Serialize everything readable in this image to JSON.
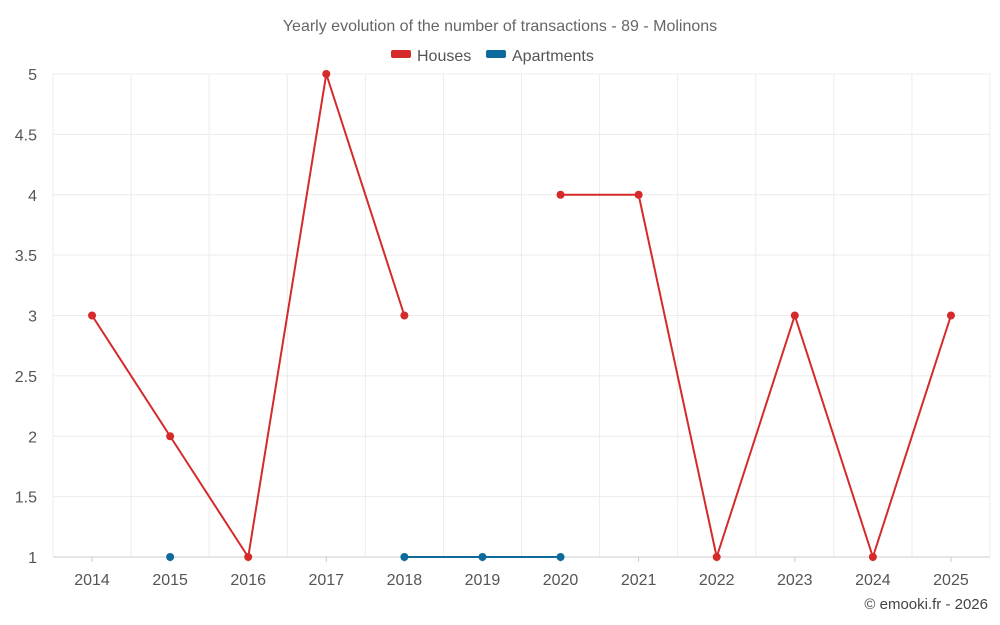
{
  "chart_data": {
    "type": "line",
    "title": "Yearly evolution of the number of transactions - 89 - Molinons",
    "categories": [
      "2014",
      "2015",
      "2016",
      "2017",
      "2018",
      "2019",
      "2020",
      "2021",
      "2022",
      "2023",
      "2024",
      "2025"
    ],
    "y_ticks": [
      "1",
      "1.5",
      "2",
      "2.5",
      "3",
      "3.5",
      "4",
      "4.5",
      "5"
    ],
    "ylim": [
      1,
      5
    ],
    "grid": true,
    "legend_position": "top-center",
    "series": [
      {
        "name": "Houses",
        "color": "#d42a2a",
        "values": [
          3,
          2,
          1,
          5,
          3,
          null,
          4,
          4,
          1,
          3,
          1,
          3
        ]
      },
      {
        "name": "Apartments",
        "color": "#0e6a9c",
        "values": [
          null,
          1,
          null,
          null,
          1,
          1,
          1,
          null,
          null,
          null,
          null,
          null
        ]
      }
    ]
  },
  "credit": "© emooki.fr - 2026"
}
